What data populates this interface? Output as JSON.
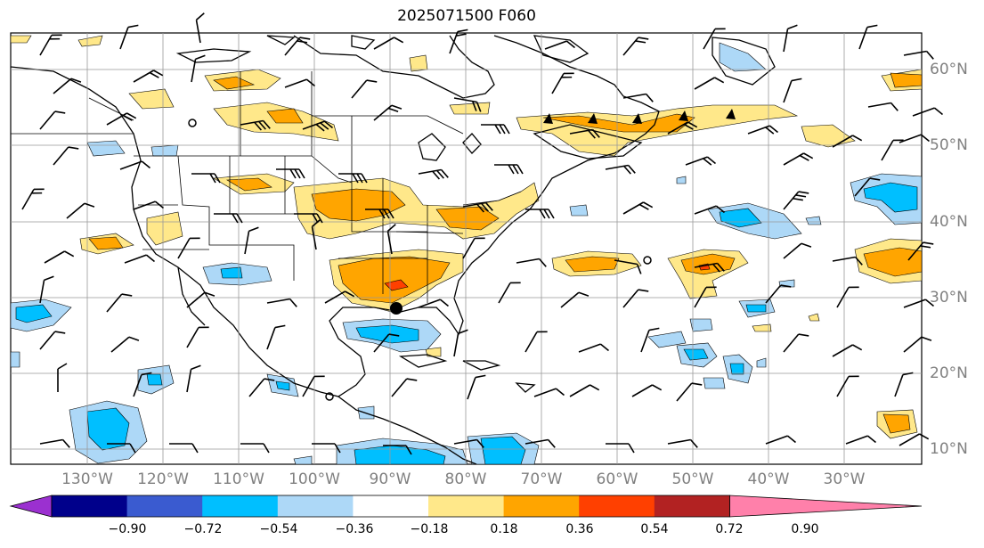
{
  "title": "2025071500 F060",
  "longitude_labels": [
    "130°W",
    "120°W",
    "110°W",
    "100°W",
    "90°W",
    "80°W",
    "70°W",
    "60°W",
    "50°W",
    "40°W",
    "30°W"
  ],
  "latitude_labels": [
    "60°N",
    "50°N",
    "40°N",
    "30°N",
    "20°N",
    "10°N"
  ],
  "colorbar": {
    "ticks": [
      "−0.90",
      "−0.72",
      "−0.54",
      "−0.36",
      "−0.18",
      "0.18",
      "0.36",
      "0.54",
      "0.72",
      "0.90"
    ],
    "colors": [
      "#9b30d0",
      "#00008b",
      "#3a5bd0",
      "#00bfff",
      "#add8f7",
      "#ffffff",
      "#ffe88a",
      "#ffa500",
      "#ff4000",
      "#b22222",
      "#ff80aa"
    ]
  },
  "map": {
    "lon_range": [
      -135,
      -15
    ],
    "lat_range": [
      8,
      65
    ],
    "features": [
      "coastlines",
      "us-state-borders",
      "gridlines",
      "wind-barbs",
      "shaded-field",
      "fronts"
    ]
  }
}
